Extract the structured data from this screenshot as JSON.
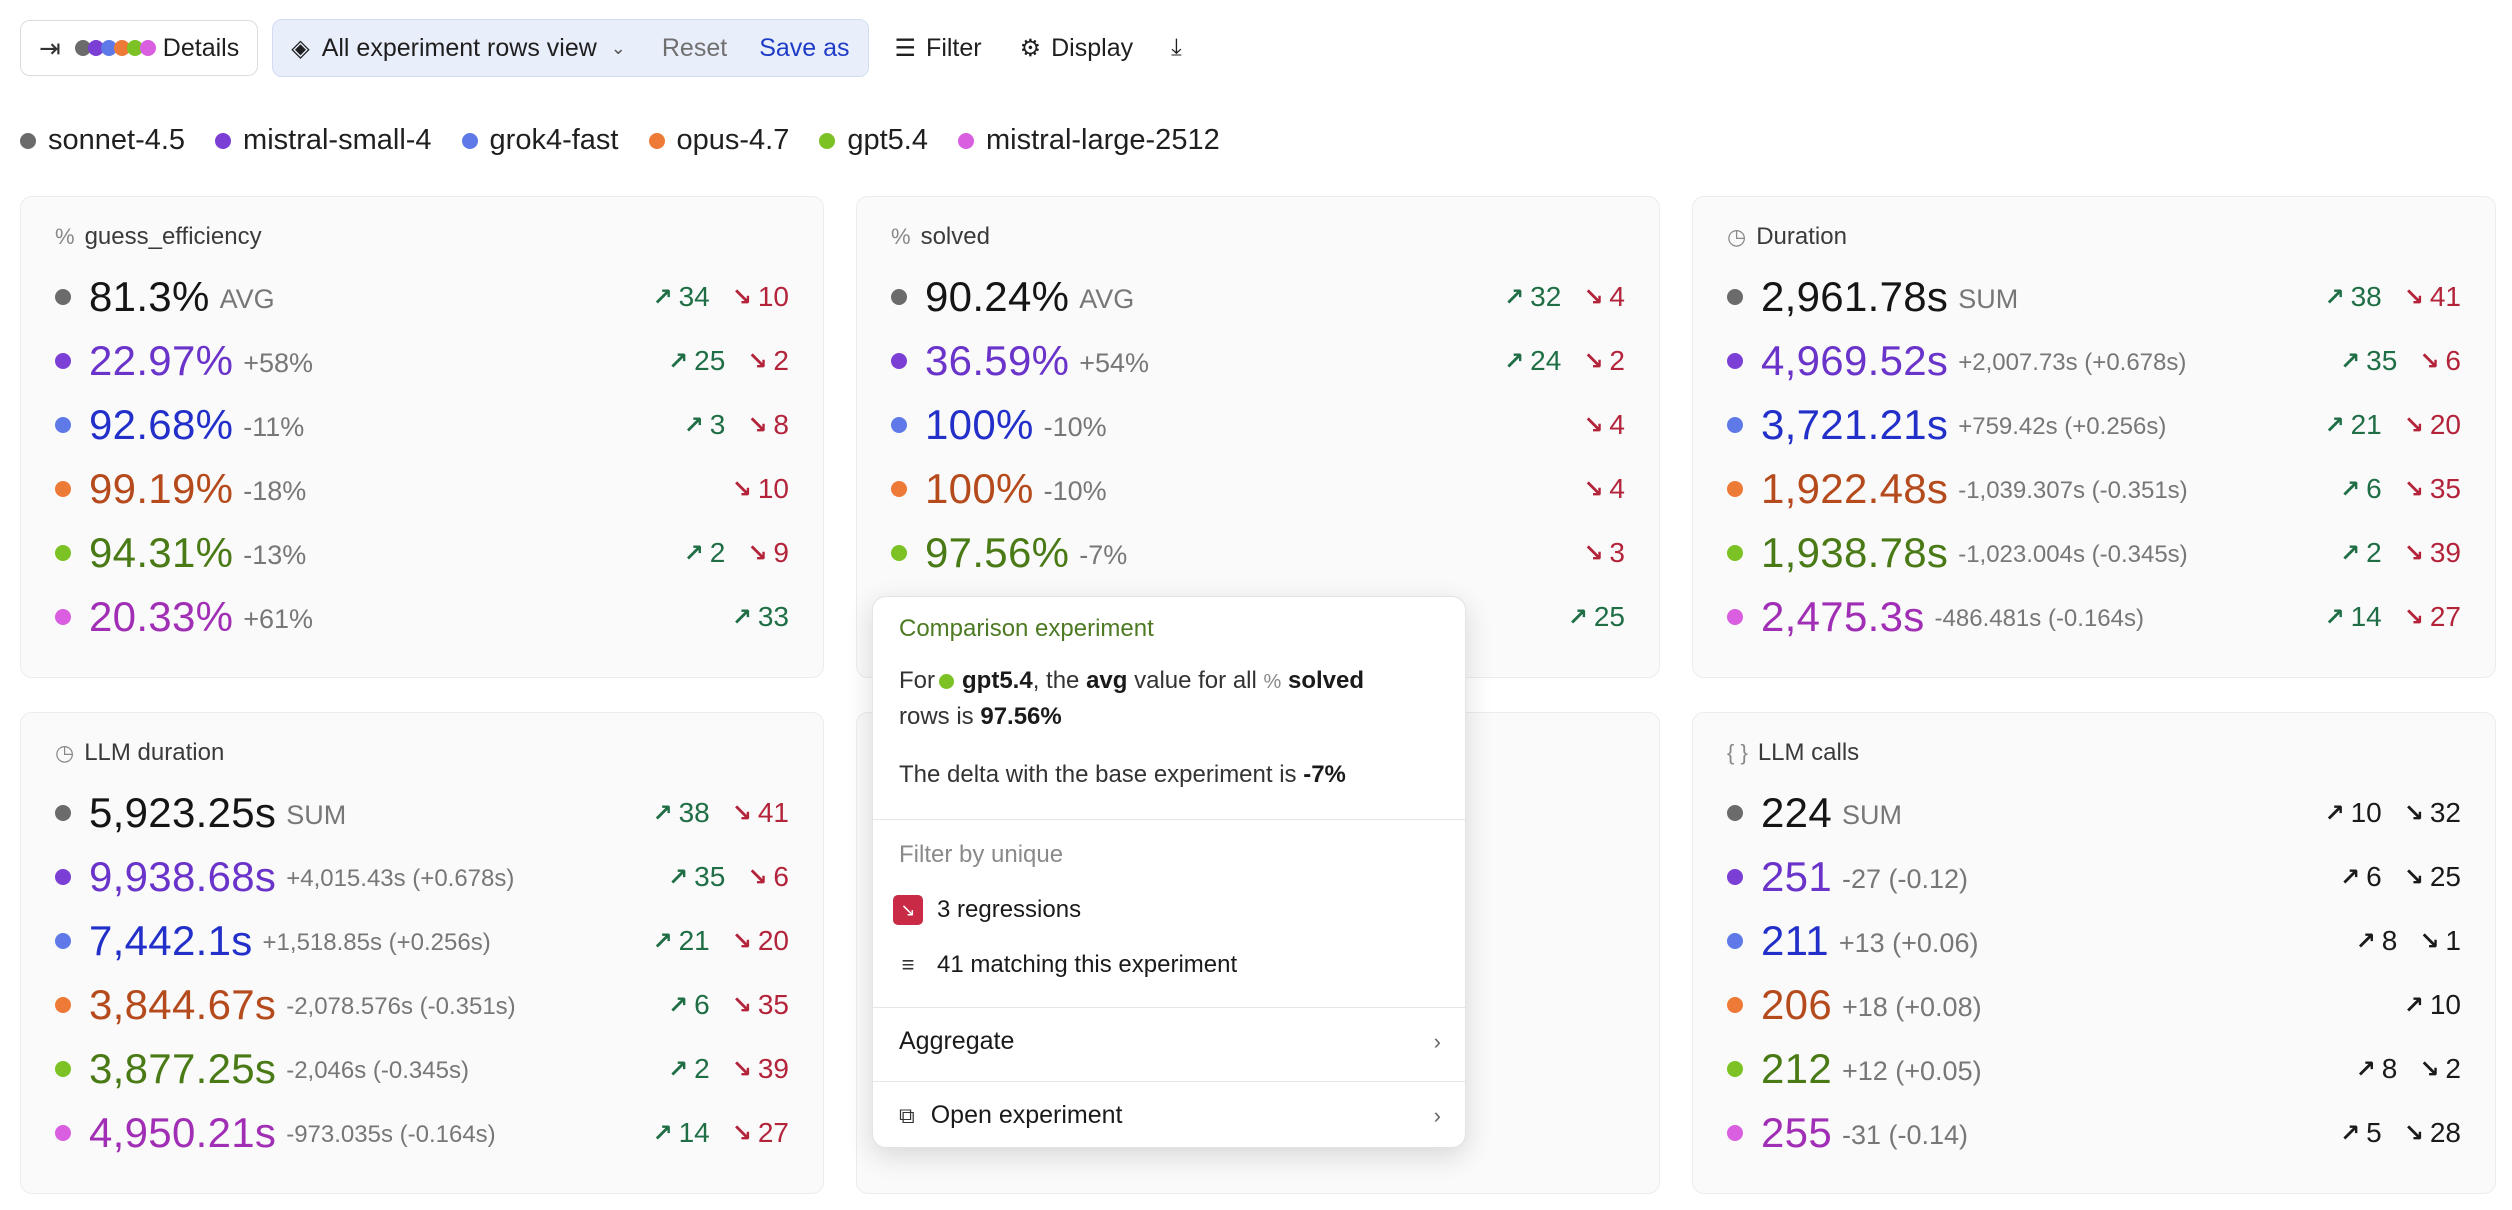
{
  "toolbar": {
    "details_label": "Details",
    "view_label": "All experiment rows view",
    "reset_label": "Reset",
    "save_as_label": "Save as",
    "filter_label": "Filter",
    "display_label": "Display"
  },
  "legend": [
    {
      "name": "sonnet-4.5",
      "color": "#6b6b6b"
    },
    {
      "name": "mistral-small-4",
      "color": "#7b3fd6"
    },
    {
      "name": "grok4-fast",
      "color": "#5f7ae8"
    },
    {
      "name": "opus-4.7",
      "color": "#ee7a38"
    },
    {
      "name": "gpt5.4",
      "color": "#7cc225"
    },
    {
      "name": "mistral-large-2512",
      "color": "#d95fe0"
    }
  ],
  "value_colors": [
    "#151515",
    "#6a33c9",
    "#2230c9",
    "#b54a1c",
    "#4a7a16",
    "#a12fb5"
  ],
  "cards": [
    {
      "title": "guess_efficiency",
      "icon": "percent-icon",
      "rows": [
        {
          "value": "81.3%",
          "sub": "AVG",
          "up": "34",
          "down": "10"
        },
        {
          "value": "22.97%",
          "sub": "+58%",
          "up": "25",
          "down": "2"
        },
        {
          "value": "92.68%",
          "sub": "-11%",
          "up": "3",
          "down": "8"
        },
        {
          "value": "99.19%",
          "sub": "-18%",
          "up": "",
          "down": "10"
        },
        {
          "value": "94.31%",
          "sub": "-13%",
          "up": "2",
          "down": "9"
        },
        {
          "value": "20.33%",
          "sub": "+61%",
          "up": "33",
          "down": ""
        }
      ]
    },
    {
      "title": "solved",
      "icon": "percent-icon",
      "rows": [
        {
          "value": "90.24%",
          "sub": "AVG",
          "up": "32",
          "down": "4"
        },
        {
          "value": "36.59%",
          "sub": "+54%",
          "up": "24",
          "down": "2"
        },
        {
          "value": "100%",
          "sub": "-10%",
          "up": "",
          "down": "4"
        },
        {
          "value": "100%",
          "sub": "-10%",
          "up": "",
          "down": "4"
        },
        {
          "value": "97.56%",
          "sub": "-7%",
          "up": "",
          "down": "3"
        },
        {
          "value": "",
          "sub": "",
          "up": "25",
          "down": ""
        }
      ]
    },
    {
      "title": "Duration",
      "icon": "clock-icon",
      "rows": [
        {
          "value": "2,961.78s",
          "sub": "SUM",
          "up": "38",
          "down": "41"
        },
        {
          "value": "4,969.52s",
          "sub": "+2,007.73s (+0.678s)",
          "up": "35",
          "down": "6"
        },
        {
          "value": "3,721.21s",
          "sub": "+759.42s (+0.256s)",
          "up": "21",
          "down": "20"
        },
        {
          "value": "1,922.48s",
          "sub": "-1,039.307s (-0.351s)",
          "up": "6",
          "down": "35"
        },
        {
          "value": "1,938.78s",
          "sub": "-1,023.004s (-0.345s)",
          "up": "2",
          "down": "39"
        },
        {
          "value": "2,475.3s",
          "sub": "-486.481s (-0.164s)",
          "up": "14",
          "down": "27"
        }
      ]
    },
    {
      "title": "LLM duration",
      "icon": "clock-icon",
      "rows": [
        {
          "value": "5,923.25s",
          "sub": "SUM",
          "up": "38",
          "down": "41"
        },
        {
          "value": "9,938.68s",
          "sub": "+4,015.43s (+0.678s)",
          "up": "35",
          "down": "6"
        },
        {
          "value": "7,442.1s",
          "sub": "+1,518.85s (+0.256s)",
          "up": "21",
          "down": "20"
        },
        {
          "value": "3,844.67s",
          "sub": "-2,078.576s (-0.351s)",
          "up": "6",
          "down": "35"
        },
        {
          "value": "3,877.25s",
          "sub": "-2,046s (-0.345s)",
          "up": "2",
          "down": "39"
        },
        {
          "value": "4,950.21s",
          "sub": "-973.035s (-0.164s)",
          "up": "14",
          "down": "27"
        }
      ]
    },
    {
      "title": "",
      "icon": "",
      "rows": []
    },
    {
      "title": "LLM calls",
      "icon": "braces-icon",
      "rows": [
        {
          "value": "224",
          "sub": "SUM",
          "up": "10",
          "down": "32"
        },
        {
          "value": "251",
          "sub": "-27 (-0.12)",
          "up": "6",
          "down": "25"
        },
        {
          "value": "211",
          "sub": "+13 (+0.06)",
          "up": "8",
          "down": "1"
        },
        {
          "value": "206",
          "sub": "+18 (+0.08)",
          "up": "10",
          "down": ""
        },
        {
          "value": "212",
          "sub": "+12 (+0.05)",
          "up": "8",
          "down": "2"
        },
        {
          "value": "255",
          "sub": "-31 (-0.14)",
          "up": "5",
          "down": "28"
        }
      ]
    }
  ],
  "popover": {
    "heading": "Comparison experiment",
    "line1_for": "For",
    "line1_model": "gpt5.4",
    "line1_mid": ", the",
    "line1_agg": "avg",
    "line1_rest": "value for all",
    "line1_metric": "solved",
    "line2_prefix": "rows is",
    "line2_value": "97.56%",
    "delta_text": "The delta with the base experiment is",
    "delta_value": "-7%",
    "filter_label": "Filter by unique",
    "regressions_label": "3 regressions",
    "matching_label": "41 matching this experiment",
    "aggregate_label": "Aggregate",
    "open_label": "Open experiment"
  }
}
